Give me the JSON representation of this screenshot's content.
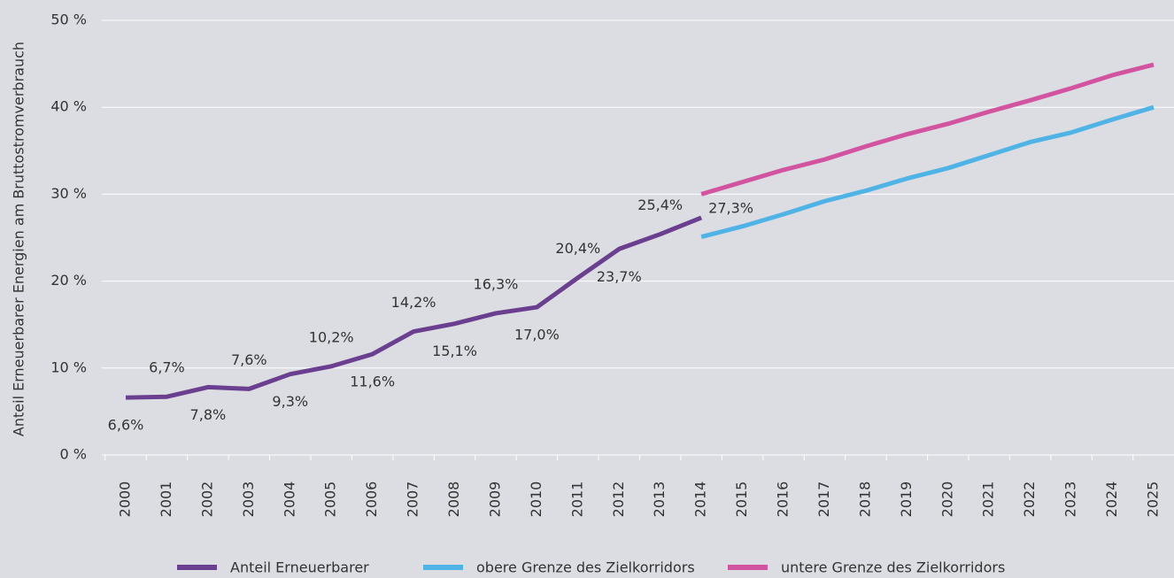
{
  "chart_data": {
    "type": "line",
    "y_axis_label": "Anteil Erneuerbarer Energien am Bruttostromverbrauch",
    "categories": [
      "2000",
      "2001",
      "2002",
      "2003",
      "2004",
      "2005",
      "2006",
      "2007",
      "2008",
      "2009",
      "2010",
      "2011",
      "2012",
      "2013",
      "2014",
      "2015",
      "2016",
      "2017",
      "2018",
      "2019",
      "2020",
      "2021",
      "2022",
      "2023",
      "2024",
      "2025"
    ],
    "series": [
      {
        "name": "Anteil Erneuerbarer",
        "color": "#6b3f8f",
        "values": [
          6.6,
          6.7,
          7.8,
          7.6,
          9.3,
          10.2,
          11.6,
          14.2,
          15.1,
          16.3,
          17.0,
          20.4,
          23.7,
          25.4,
          27.3,
          null,
          null,
          null,
          null,
          null,
          null,
          null,
          null,
          null,
          null,
          null
        ],
        "value_labels": [
          "6,6%",
          "6,7%",
          "7,8%",
          "7,6%",
          "9,3%",
          "10,2%",
          "11,6%",
          "14,2%",
          "15,1%",
          "16,3%",
          "17,0%",
          "20,4%",
          "23,7%",
          "25,4%",
          "27,3%",
          null,
          null,
          null,
          null,
          null,
          null,
          null,
          null,
          null,
          null,
          null
        ]
      },
      {
        "name": "obere Grenze des Zielkorridors",
        "color": "#4fb3e6",
        "values": [
          null,
          null,
          null,
          null,
          null,
          null,
          null,
          null,
          null,
          null,
          null,
          null,
          null,
          null,
          25.1,
          26.3,
          27.7,
          29.2,
          30.4,
          31.8,
          33.0,
          34.5,
          36.0,
          37.1,
          38.6,
          40.0
        ]
      },
      {
        "name": "untere Grenze des Zielkorridors",
        "color": "#d254a0",
        "values": [
          null,
          null,
          null,
          null,
          null,
          null,
          null,
          null,
          null,
          null,
          null,
          null,
          null,
          null,
          30.0,
          31.4,
          32.8,
          34.0,
          35.5,
          36.9,
          38.1,
          39.5,
          40.8,
          42.2,
          43.7,
          44.9
        ]
      }
    ],
    "ylim": [
      0,
      50
    ],
    "yticks": [
      {
        "value": 0,
        "label": "0 %"
      },
      {
        "value": 10,
        "label": "10 %"
      },
      {
        "value": 20,
        "label": "20 %"
      },
      {
        "value": 30,
        "label": "30 %"
      },
      {
        "value": 40,
        "label": "40 %"
      },
      {
        "value": 50,
        "label": "50 %"
      }
    ],
    "grid": true
  }
}
